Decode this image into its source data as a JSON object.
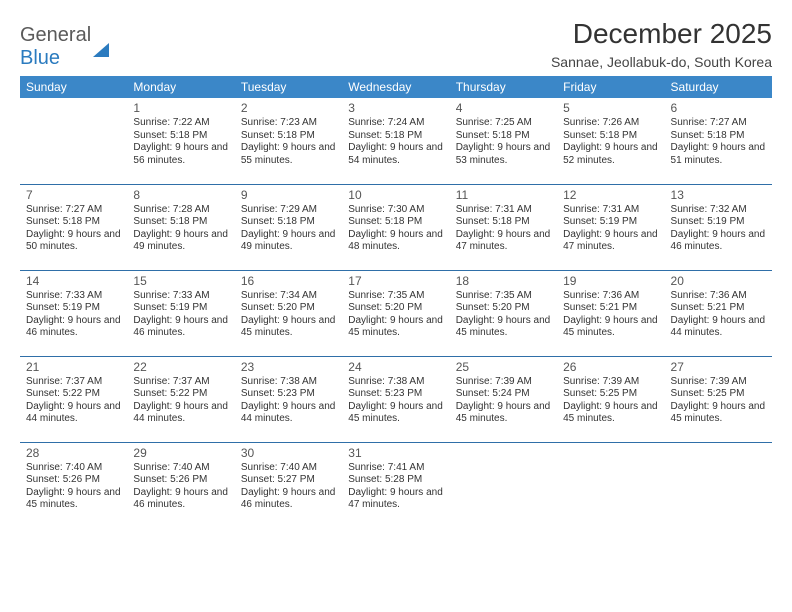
{
  "logo": {
    "word1": "General",
    "word2": "Blue"
  },
  "title": "December 2025",
  "location": "Sannae, Jeollabuk-do, South Korea",
  "header_bg": "#3b87c8",
  "row_border": "#2f6fa8",
  "day_headers": [
    "Sunday",
    "Monday",
    "Tuesday",
    "Wednesday",
    "Thursday",
    "Friday",
    "Saturday"
  ],
  "weeks": [
    [
      null,
      {
        "n": "1",
        "sr": "Sunrise: 7:22 AM",
        "ss": "Sunset: 5:18 PM",
        "dl": "Daylight: 9 hours and 56 minutes."
      },
      {
        "n": "2",
        "sr": "Sunrise: 7:23 AM",
        "ss": "Sunset: 5:18 PM",
        "dl": "Daylight: 9 hours and 55 minutes."
      },
      {
        "n": "3",
        "sr": "Sunrise: 7:24 AM",
        "ss": "Sunset: 5:18 PM",
        "dl": "Daylight: 9 hours and 54 minutes."
      },
      {
        "n": "4",
        "sr": "Sunrise: 7:25 AM",
        "ss": "Sunset: 5:18 PM",
        "dl": "Daylight: 9 hours and 53 minutes."
      },
      {
        "n": "5",
        "sr": "Sunrise: 7:26 AM",
        "ss": "Sunset: 5:18 PM",
        "dl": "Daylight: 9 hours and 52 minutes."
      },
      {
        "n": "6",
        "sr": "Sunrise: 7:27 AM",
        "ss": "Sunset: 5:18 PM",
        "dl": "Daylight: 9 hours and 51 minutes."
      }
    ],
    [
      {
        "n": "7",
        "sr": "Sunrise: 7:27 AM",
        "ss": "Sunset: 5:18 PM",
        "dl": "Daylight: 9 hours and 50 minutes."
      },
      {
        "n": "8",
        "sr": "Sunrise: 7:28 AM",
        "ss": "Sunset: 5:18 PM",
        "dl": "Daylight: 9 hours and 49 minutes."
      },
      {
        "n": "9",
        "sr": "Sunrise: 7:29 AM",
        "ss": "Sunset: 5:18 PM",
        "dl": "Daylight: 9 hours and 49 minutes."
      },
      {
        "n": "10",
        "sr": "Sunrise: 7:30 AM",
        "ss": "Sunset: 5:18 PM",
        "dl": "Daylight: 9 hours and 48 minutes."
      },
      {
        "n": "11",
        "sr": "Sunrise: 7:31 AM",
        "ss": "Sunset: 5:18 PM",
        "dl": "Daylight: 9 hours and 47 minutes."
      },
      {
        "n": "12",
        "sr": "Sunrise: 7:31 AM",
        "ss": "Sunset: 5:19 PM",
        "dl": "Daylight: 9 hours and 47 minutes."
      },
      {
        "n": "13",
        "sr": "Sunrise: 7:32 AM",
        "ss": "Sunset: 5:19 PM",
        "dl": "Daylight: 9 hours and 46 minutes."
      }
    ],
    [
      {
        "n": "14",
        "sr": "Sunrise: 7:33 AM",
        "ss": "Sunset: 5:19 PM",
        "dl": "Daylight: 9 hours and 46 minutes."
      },
      {
        "n": "15",
        "sr": "Sunrise: 7:33 AM",
        "ss": "Sunset: 5:19 PM",
        "dl": "Daylight: 9 hours and 46 minutes."
      },
      {
        "n": "16",
        "sr": "Sunrise: 7:34 AM",
        "ss": "Sunset: 5:20 PM",
        "dl": "Daylight: 9 hours and 45 minutes."
      },
      {
        "n": "17",
        "sr": "Sunrise: 7:35 AM",
        "ss": "Sunset: 5:20 PM",
        "dl": "Daylight: 9 hours and 45 minutes."
      },
      {
        "n": "18",
        "sr": "Sunrise: 7:35 AM",
        "ss": "Sunset: 5:20 PM",
        "dl": "Daylight: 9 hours and 45 minutes."
      },
      {
        "n": "19",
        "sr": "Sunrise: 7:36 AM",
        "ss": "Sunset: 5:21 PM",
        "dl": "Daylight: 9 hours and 45 minutes."
      },
      {
        "n": "20",
        "sr": "Sunrise: 7:36 AM",
        "ss": "Sunset: 5:21 PM",
        "dl": "Daylight: 9 hours and 44 minutes."
      }
    ],
    [
      {
        "n": "21",
        "sr": "Sunrise: 7:37 AM",
        "ss": "Sunset: 5:22 PM",
        "dl": "Daylight: 9 hours and 44 minutes."
      },
      {
        "n": "22",
        "sr": "Sunrise: 7:37 AM",
        "ss": "Sunset: 5:22 PM",
        "dl": "Daylight: 9 hours and 44 minutes."
      },
      {
        "n": "23",
        "sr": "Sunrise: 7:38 AM",
        "ss": "Sunset: 5:23 PM",
        "dl": "Daylight: 9 hours and 44 minutes."
      },
      {
        "n": "24",
        "sr": "Sunrise: 7:38 AM",
        "ss": "Sunset: 5:23 PM",
        "dl": "Daylight: 9 hours and 45 minutes."
      },
      {
        "n": "25",
        "sr": "Sunrise: 7:39 AM",
        "ss": "Sunset: 5:24 PM",
        "dl": "Daylight: 9 hours and 45 minutes."
      },
      {
        "n": "26",
        "sr": "Sunrise: 7:39 AM",
        "ss": "Sunset: 5:25 PM",
        "dl": "Daylight: 9 hours and 45 minutes."
      },
      {
        "n": "27",
        "sr": "Sunrise: 7:39 AM",
        "ss": "Sunset: 5:25 PM",
        "dl": "Daylight: 9 hours and 45 minutes."
      }
    ],
    [
      {
        "n": "28",
        "sr": "Sunrise: 7:40 AM",
        "ss": "Sunset: 5:26 PM",
        "dl": "Daylight: 9 hours and 45 minutes."
      },
      {
        "n": "29",
        "sr": "Sunrise: 7:40 AM",
        "ss": "Sunset: 5:26 PM",
        "dl": "Daylight: 9 hours and 46 minutes."
      },
      {
        "n": "30",
        "sr": "Sunrise: 7:40 AM",
        "ss": "Sunset: 5:27 PM",
        "dl": "Daylight: 9 hours and 46 minutes."
      },
      {
        "n": "31",
        "sr": "Sunrise: 7:41 AM",
        "ss": "Sunset: 5:28 PM",
        "dl": "Daylight: 9 hours and 47 minutes."
      },
      null,
      null,
      null
    ]
  ]
}
